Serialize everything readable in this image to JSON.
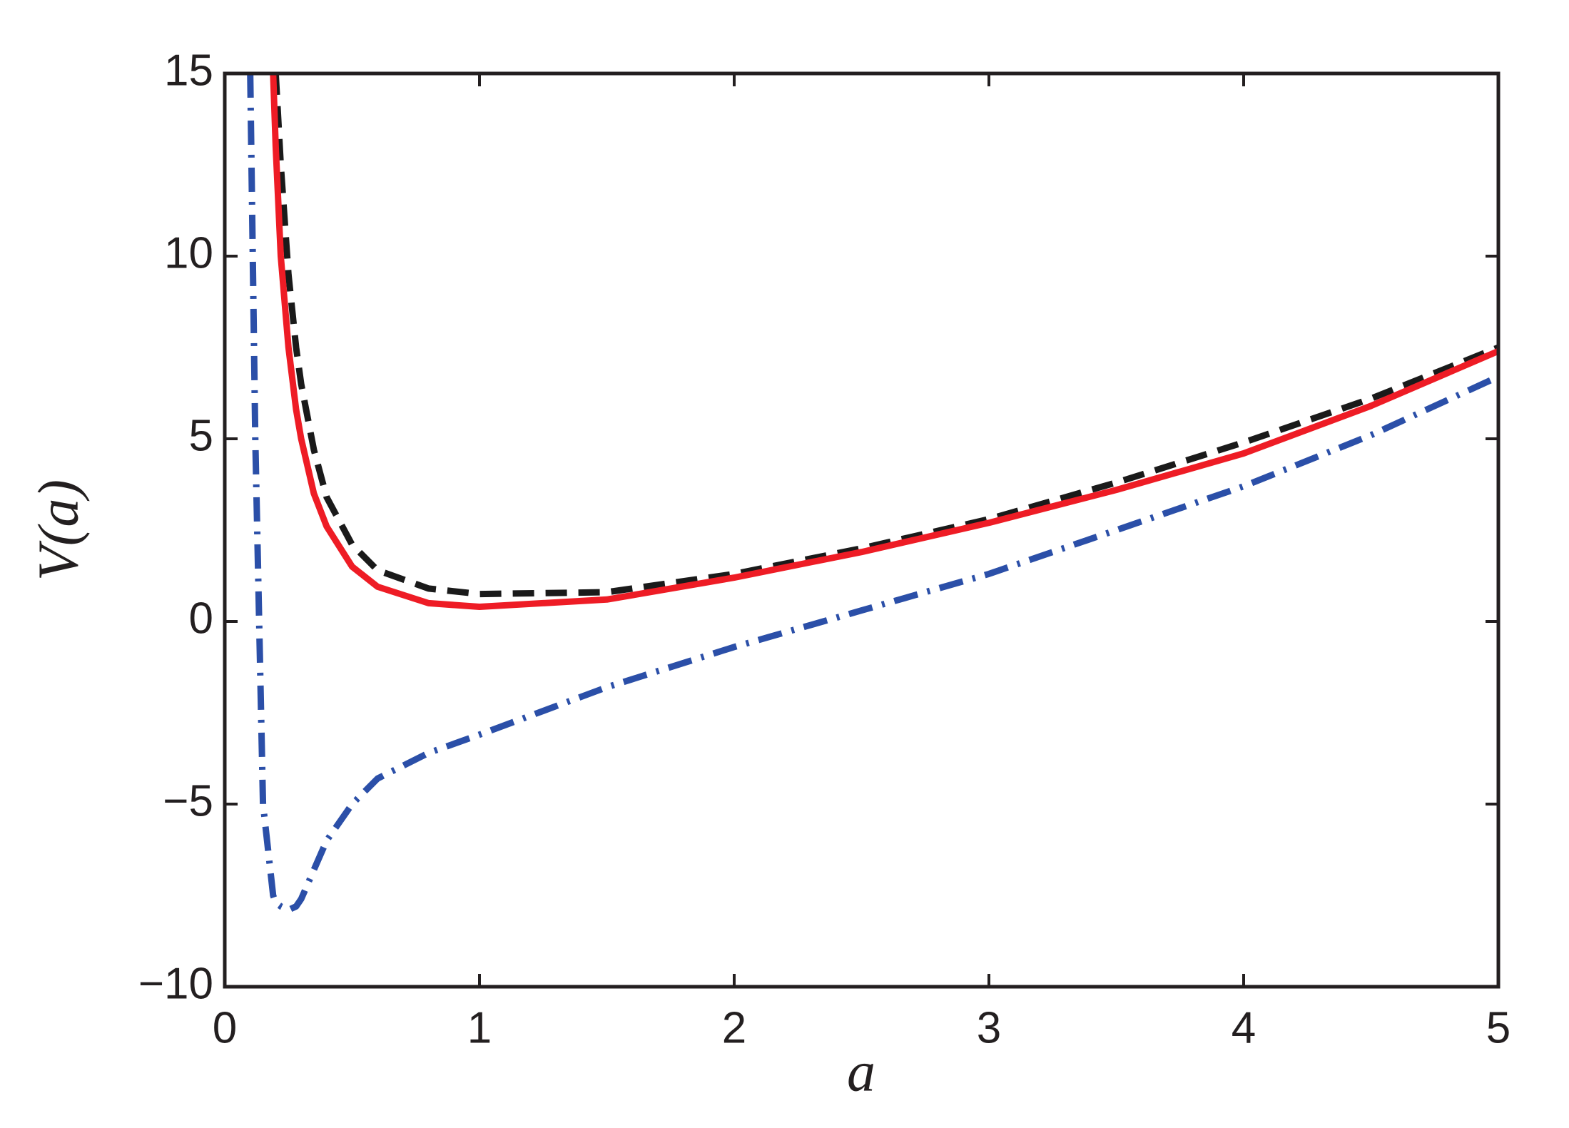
{
  "chart_data": {
    "type": "line",
    "xlabel": "a",
    "ylabel": "V(a)",
    "x": [
      0.1,
      0.12,
      0.15,
      0.19,
      0.2,
      0.22,
      0.25,
      0.28,
      0.3,
      0.35,
      0.4,
      0.5,
      0.6,
      0.8,
      1,
      1.5,
      2,
      2.5,
      3,
      3.5,
      4,
      4.5,
      5
    ],
    "series": [
      {
        "color": "#2b4fa8",
        "linestyle": "dashdot",
        "values": [
          15,
          5,
          -5,
          -7.5,
          -7.7,
          -7.8,
          -7.9,
          -7.8,
          -7.6,
          -6.8,
          -6,
          -5,
          -4.3,
          -3.6,
          -3.1,
          -1.8,
          -0.7,
          0.3,
          1.3,
          2.5,
          3.7,
          5.1,
          6.7
        ]
      },
      {
        "color": "#1a1a1a",
        "linestyle": "dashed",
        "values": [
          null,
          null,
          null,
          null,
          15,
          12.5,
          9.5,
          7.5,
          6.5,
          4.7,
          3.4,
          2.1,
          1.4,
          0.9,
          0.75,
          0.8,
          1.3,
          2.0,
          2.8,
          3.8,
          4.9,
          6.1,
          7.5
        ]
      },
      {
        "color": "#ee1c25",
        "linestyle": "solid",
        "values": [
          null,
          null,
          null,
          15,
          13,
          10,
          7.5,
          5.8,
          5.0,
          3.5,
          2.6,
          1.5,
          0.95,
          0.5,
          0.4,
          0.6,
          1.2,
          1.9,
          2.7,
          3.6,
          4.6,
          5.9,
          7.4
        ]
      }
    ],
    "xlim": [
      0,
      5
    ],
    "ylim": [
      -10,
      15
    ],
    "xticks": [
      0,
      1,
      2,
      3,
      4,
      5
    ],
    "yticks": [
      {
        "value": -10,
        "label": "−10"
      },
      {
        "value": -5,
        "label": "−5"
      },
      0,
      5,
      10,
      15
    ]
  }
}
